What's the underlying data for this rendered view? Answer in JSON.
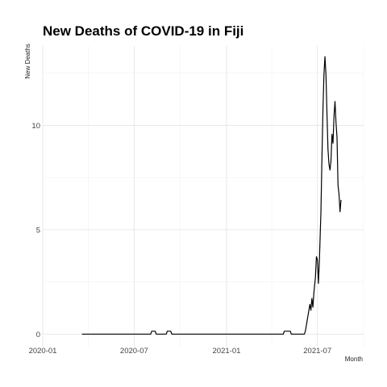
{
  "chart_data": {
    "type": "line",
    "title": "New Deaths of COVID-19 in Fiji",
    "xlabel": "Month",
    "ylabel": "New Deaths",
    "x_ticks": [
      "2020-01",
      "2020-07",
      "2021-01",
      "2021-07"
    ],
    "y_ticks": [
      0,
      5,
      10
    ],
    "xlim": [
      "2020-01-01",
      "2021-10-01"
    ],
    "ylim": [
      -0.6,
      13.8
    ],
    "grid": true,
    "legend": "none",
    "series": [
      {
        "points": [
          [
            "2020-03-19",
            0
          ],
          [
            "2020-08-03",
            0
          ],
          [
            "2020-08-05",
            0.14
          ],
          [
            "2020-08-12",
            0.14
          ],
          [
            "2020-08-14",
            0
          ],
          [
            "2020-09-03",
            0
          ],
          [
            "2020-09-05",
            0.14
          ],
          [
            "2020-09-12",
            0.14
          ],
          [
            "2020-09-14",
            0
          ],
          [
            "2021-04-24",
            0
          ],
          [
            "2021-04-26",
            0.14
          ],
          [
            "2021-05-08",
            0.14
          ],
          [
            "2021-05-10",
            0
          ],
          [
            "2021-06-05",
            0
          ],
          [
            "2021-06-07",
            0.14
          ],
          [
            "2021-06-10",
            0.57
          ],
          [
            "2021-06-13",
            1.0
          ],
          [
            "2021-06-16",
            1.43
          ],
          [
            "2021-06-18",
            1.14
          ],
          [
            "2021-06-20",
            1.71
          ],
          [
            "2021-06-22",
            1.29
          ],
          [
            "2021-06-24",
            2.0
          ],
          [
            "2021-06-27",
            2.71
          ],
          [
            "2021-06-29",
            3.71
          ],
          [
            "2021-07-01",
            3.57
          ],
          [
            "2021-07-03",
            2.43
          ],
          [
            "2021-07-05",
            3.57
          ],
          [
            "2021-07-08",
            5.86
          ],
          [
            "2021-07-10",
            8.43
          ],
          [
            "2021-07-12",
            10.71
          ],
          [
            "2021-07-14",
            12.43
          ],
          [
            "2021-07-16",
            13.29
          ],
          [
            "2021-07-18",
            12.43
          ],
          [
            "2021-07-20",
            10.57
          ],
          [
            "2021-07-22",
            8.86
          ],
          [
            "2021-07-24",
            8.14
          ],
          [
            "2021-07-26",
            7.86
          ],
          [
            "2021-07-28",
            8.29
          ],
          [
            "2021-07-30",
            9.57
          ],
          [
            "2021-08-01",
            9.14
          ],
          [
            "2021-08-03",
            10.43
          ],
          [
            "2021-08-05",
            11.14
          ],
          [
            "2021-08-07",
            10.14
          ],
          [
            "2021-08-09",
            9.43
          ],
          [
            "2021-08-11",
            7.14
          ],
          [
            "2021-08-13",
            6.71
          ],
          [
            "2021-08-15",
            5.86
          ],
          [
            "2021-08-17",
            6.43
          ]
        ]
      }
    ]
  }
}
